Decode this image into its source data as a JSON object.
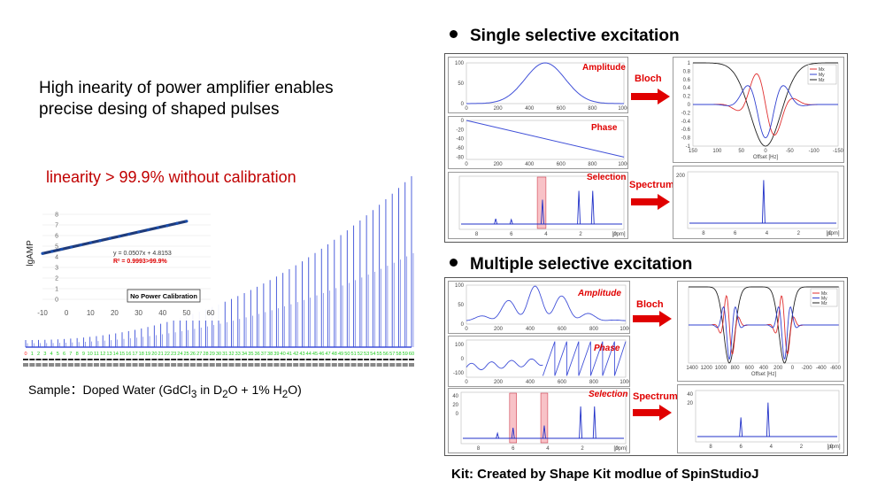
{
  "left": {
    "heading_line1": "High inearity of power amplifier enables",
    "heading_line2": "precise desing of shaped pulses",
    "linearity_text": "linearity > 99.9% without calibration",
    "sample_text": "Sample：Doped Water (GdCl3 in D2O + 1% H2O)",
    "sample_prefix": "Sample：Doped Water (GdCl",
    "sample_mid1": " in D",
    "sample_mid2": "O + 1% H",
    "sample_mid3": "O)",
    "sub3": "3",
    "sub2a": "2",
    "sub2b": "2"
  },
  "inset_chart": {
    "chart_data": {
      "type": "scatter",
      "ylabel": "lgAMP",
      "x_ticks": [
        "-10",
        "0",
        "10",
        "20",
        "30",
        "40",
        "50",
        "60"
      ],
      "y_ticks": [
        "0",
        "1",
        "2",
        "3",
        "4",
        "5",
        "6",
        "7",
        "8"
      ],
      "xlim": [
        -10,
        60
      ],
      "ylim": [
        0,
        8
      ],
      "x": [
        -10,
        -6,
        -2,
        2,
        6,
        10,
        14,
        18,
        22,
        26,
        30,
        34,
        38,
        42,
        46,
        50
      ],
      "y": [
        4.31,
        4.51,
        4.71,
        4.92,
        5.12,
        5.32,
        5.52,
        5.73,
        5.93,
        6.13,
        6.34,
        6.54,
        6.74,
        6.94,
        7.15,
        7.35
      ],
      "equation": "y = 0.0507x + 4.8153",
      "r2": "R² = 0.9993>99.9%",
      "box_label": "No Power Calibration"
    }
  },
  "spectrum_strip": {
    "chart_data": {
      "type": "bar",
      "categories": [
        "0",
        "1",
        "2",
        "3",
        "4",
        "5",
        "6",
        "7",
        "8",
        "9",
        "10",
        "11",
        "12",
        "13",
        "14",
        "15",
        "16",
        "17",
        "18",
        "19",
        "20",
        "21",
        "22",
        "23",
        "24",
        "25",
        "26",
        "27",
        "28",
        "29",
        "30",
        "31",
        "32",
        "33",
        "34",
        "35",
        "36",
        "37",
        "38",
        "39",
        "40",
        "41",
        "42",
        "43",
        "44",
        "45",
        "46",
        "47",
        "48",
        "49",
        "50",
        "51",
        "52",
        "53",
        "54",
        "55",
        "56",
        "57",
        "58",
        "59",
        "60"
      ],
      "label_color": "#22cc22",
      "first_label_color": "#ff2222"
    }
  },
  "single": {
    "title": "Single selective excitation",
    "amplitude_label": "Amplitude",
    "phase_label": "Phase",
    "selection_label": "Selection",
    "bloch_label": "Bloch",
    "spectrum_label": "Spectrum",
    "amp_chart": {
      "chart_data": {
        "type": "line",
        "x_ticks": [
          "0",
          "200",
          "400",
          "600",
          "800",
          "1000"
        ],
        "y_ticks": [
          "0",
          "50",
          "100"
        ],
        "xlim": [
          0,
          1000
        ],
        "ylim": [
          0,
          100
        ],
        "shape": "gaussian",
        "center": 500,
        "width": 180
      }
    },
    "phase_chart": {
      "chart_data": {
        "type": "line",
        "x_ticks": [
          "0",
          "200",
          "400",
          "600",
          "800",
          "1000"
        ],
        "y_ticks": [
          "0",
          "-20",
          "-40",
          "-60",
          "-80"
        ],
        "xlim": [
          0,
          1000
        ],
        "ylim": [
          -85,
          0
        ],
        "x": [
          0,
          1000
        ],
        "y": [
          0,
          -80
        ]
      }
    },
    "selection_chart": {
      "chart_data": {
        "type": "line",
        "x_ticks": [
          "8",
          "6",
          "4",
          "2",
          "0"
        ],
        "x_unit": "[ppm]",
        "xlim": [
          9,
          -0.5
        ],
        "peaks": [
          {
            "x": 6.9,
            "h": 0.12
          },
          {
            "x": 6.0,
            "h": 0.1
          },
          {
            "x": 4.2,
            "h": 0.55
          },
          {
            "x": 2.1,
            "h": 0.75
          },
          {
            "x": 1.3,
            "h": 0.75
          }
        ],
        "highlight": [
          4.0,
          4.5
        ]
      }
    },
    "bloch_chart": {
      "chart_data": {
        "type": "line",
        "legend": [
          "Mx",
          "My",
          "Mz"
        ],
        "legend_position": "top-right",
        "x_ticks": [
          "150",
          "100",
          "50",
          "0",
          "-50",
          "-100",
          "-150"
        ],
        "xlabel": "Offset [Hz]",
        "y_ticks": [
          "1",
          "0.8",
          "0.6",
          "0.4",
          "0.2",
          "0",
          "-0.2",
          "-0.4",
          "-0.6",
          "-0.8",
          "-1"
        ],
        "colors": [
          "#e03030",
          "#3040d0",
          "#222222"
        ]
      }
    },
    "spectrum_chart": {
      "chart_data": {
        "type": "line",
        "x_ticks": [
          "8",
          "6",
          "4",
          "2",
          "0"
        ],
        "x_unit": "[ppm]",
        "y_ticks": [
          "200"
        ],
        "peaks": [
          {
            "x": 4.2,
            "h": 0.9
          }
        ]
      }
    }
  },
  "multiple": {
    "title": "Multiple selective excitation",
    "amplitude_label": "Amplitude",
    "phase_label": "Phase",
    "selection_label": "Selection",
    "bloch_label": "Bloch",
    "spectrum_label": "Spectrum",
    "amp_chart": {
      "chart_data": {
        "type": "line",
        "x_ticks": [
          "0",
          "200",
          "400",
          "600",
          "800",
          "1000"
        ],
        "y_ticks": [
          "0",
          "50",
          "100"
        ],
        "xlim": [
          0,
          1000
        ],
        "ylim": [
          0,
          100
        ]
      }
    },
    "phase_chart": {
      "chart_data": {
        "type": "line",
        "x_ticks": [
          "0",
          "200",
          "400",
          "600",
          "800",
          "1000"
        ],
        "y_ticks": [
          "100",
          "0",
          "-100"
        ],
        "xlim": [
          0,
          1000
        ],
        "ylim": [
          -130,
          130
        ]
      }
    },
    "selection_chart": {
      "chart_data": {
        "type": "line",
        "x_ticks": [
          "8",
          "6",
          "4",
          "2",
          "0"
        ],
        "x_unit": "[ppm]",
        "y_ticks": [
          "40",
          "20",
          "0"
        ],
        "peaks": [
          {
            "x": 6.9,
            "h": 0.12
          },
          {
            "x": 6.0,
            "h": 0.25
          },
          {
            "x": 4.2,
            "h": 0.3
          },
          {
            "x": 2.1,
            "h": 0.75
          },
          {
            "x": 1.3,
            "h": 0.75
          }
        ],
        "highlights": [
          [
            5.8,
            6.2
          ],
          [
            4.0,
            4.4
          ]
        ]
      }
    },
    "bloch_chart": {
      "chart_data": {
        "type": "line",
        "legend": [
          "Mx",
          "My",
          "Mz"
        ],
        "legend_position": "top-right",
        "x_ticks": [
          "1400",
          "1200",
          "1000",
          "800",
          "600",
          "400",
          "200",
          "0",
          "-200",
          "-400",
          "-600"
        ],
        "xlabel": "Offset [Hz]",
        "colors": [
          "#e03030",
          "#3040d0",
          "#222222"
        ]
      }
    },
    "spectrum_chart": {
      "chart_data": {
        "type": "line",
        "x_ticks": [
          "8",
          "6",
          "4",
          "2",
          "0"
        ],
        "x_unit": "[ppm]",
        "y_ticks": [
          "40",
          "20"
        ],
        "peaks": [
          {
            "x": 6.0,
            "h": 0.45
          },
          {
            "x": 4.2,
            "h": 0.8
          }
        ]
      }
    }
  },
  "footer": {
    "kit_text": "Kit: Created by Shape Kit modlue of SpinStudioJ"
  }
}
